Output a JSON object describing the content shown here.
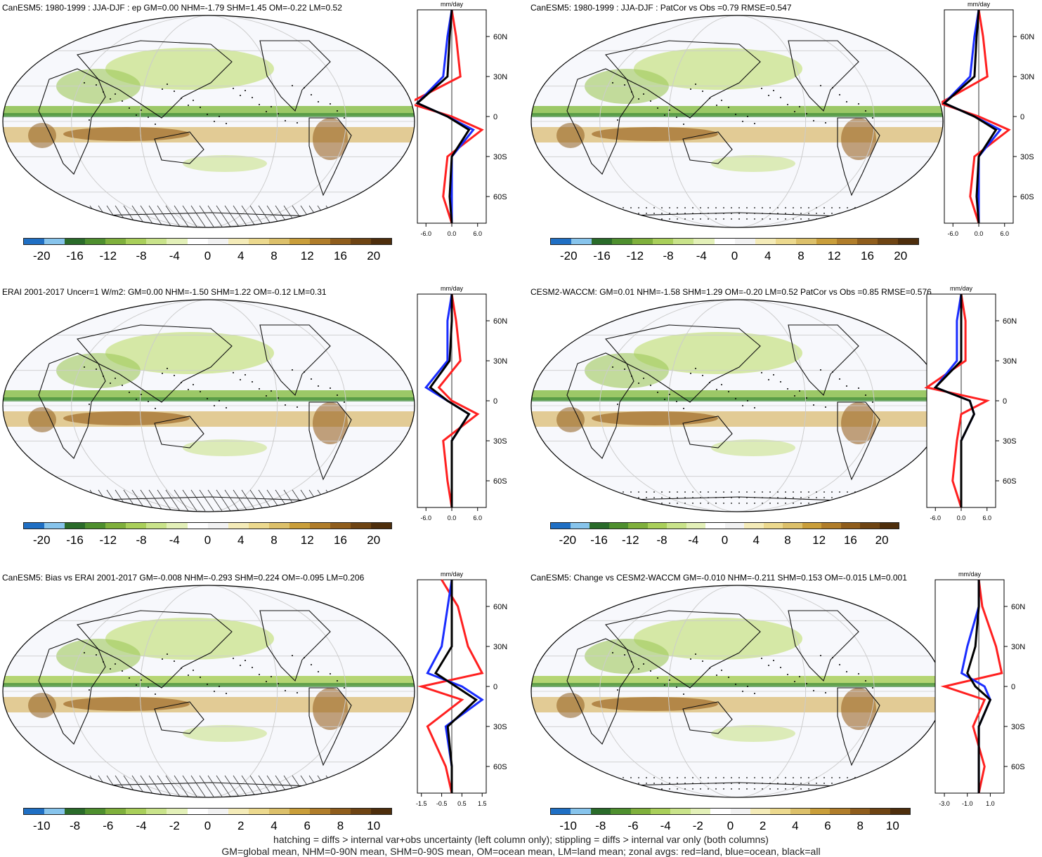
{
  "panels": [
    {
      "title": "CanESM5: 1980-1999 : JJA-DJF : ep GM=0.00 NHM=-1.79 SHM=1.45 OM=-0.22 LM=0.52",
      "colorbar_ticks": [
        "-20",
        "-16",
        "-12",
        "-8",
        "-4",
        "0",
        "4",
        "8",
        "12",
        "16",
        "20"
      ],
      "zonal_units": "mm/day",
      "zonal_xticks": [
        "-6.0",
        "0.0",
        "6.0"
      ],
      "overlay": "hatching"
    },
    {
      "title": "CanESM5: 1980-1999 : JJA-DJF : PatCor vs Obs =0.79 RMSE=0.547",
      "colorbar_ticks": [
        "-20",
        "-16",
        "-12",
        "-8",
        "-4",
        "0",
        "4",
        "8",
        "12",
        "16",
        "20"
      ],
      "zonal_units": "mm/day",
      "zonal_xticks": [
        "-6.0",
        "0.0",
        "6.0"
      ],
      "overlay": "stippling"
    },
    {
      "title": "ERAI 2001-2017 Uncer=1 W/m2: GM=0.00 NHM=-1.50 SHM=1.22 OM=-0.12 LM=0.31",
      "colorbar_ticks": [
        "-20",
        "-16",
        "-12",
        "-8",
        "-4",
        "0",
        "4",
        "8",
        "12",
        "16",
        "20"
      ],
      "zonal_units": "mm/day",
      "zonal_xticks": [
        "-6.0",
        "0.0",
        "6.0"
      ],
      "overlay": "hatching"
    },
    {
      "title": "CESM2-WACCM: GM=0.01 NHM=-1.58 SHM=1.29 OM=-0.20 LM=0.52 PatCor vs Obs =0.85 RMSE=0.576",
      "colorbar_ticks": [
        "-20",
        "-16",
        "-12",
        "-8",
        "-4",
        "0",
        "4",
        "8",
        "12",
        "16",
        "20"
      ],
      "zonal_units": "mm/day",
      "zonal_xticks": [
        "-6.0",
        "0.0",
        "6.0"
      ],
      "overlay": "stippling"
    },
    {
      "title": "CanESM5: Bias vs ERAI 2001-2017 GM=-0.008 NHM=-0.293 SHM=0.224 OM=-0.095 LM=0.206",
      "colorbar_ticks": [
        "-10",
        "-8",
        "-6",
        "-4",
        "-2",
        "0",
        "2",
        "4",
        "6",
        "8",
        "10"
      ],
      "zonal_units": "mm/day",
      "zonal_xticks": [
        "-1.5",
        "-0.5",
        "0.5",
        "1.5"
      ],
      "overlay": "hatching"
    },
    {
      "title": "CanESM5: Change vs CESM2-WACCM GM=-0.010 NHM=-0.211 SHM=0.153 OM=-0.015 LM=0.001",
      "colorbar_ticks": [
        "-10",
        "-8",
        "-6",
        "-4",
        "-2",
        "0",
        "2",
        "4",
        "6",
        "8",
        "10"
      ],
      "zonal_units": "mm/day",
      "zonal_xticks": [
        "-3.0",
        "-1.0",
        "1.0"
      ],
      "overlay": "stippling"
    }
  ],
  "zonal_lat_ticks": [
    "60N",
    "30N",
    "0",
    "30S",
    "60S"
  ],
  "colorbar_colors": [
    "#1f6fc4",
    "#87c4ec",
    "#2a6b2a",
    "#4e8f2e",
    "#7fb03c",
    "#a9cf5a",
    "#c9e38a",
    "#e3f0b8",
    "#ffffff",
    "#f2f2f2",
    "#f4ebb8",
    "#ecd98e",
    "#dcc06a",
    "#c99e3a",
    "#b07d2a",
    "#8f5d1c",
    "#6e4413",
    "#4e2e0c"
  ],
  "chart_data": [
    {
      "type": "line",
      "title": "CanESM5: 1980-1999 : JJA-DJF : ep GM=0.00 NHM=-1.79 SHM=1.45 OM=-0.22 LM=0.52",
      "xlabel": "mm/day",
      "lat": [
        80,
        60,
        30,
        10,
        0,
        -10,
        -30,
        -60,
        -80
      ],
      "series": [
        {
          "name": "land",
          "values": [
            0,
            1,
            2,
            -10,
            0,
            7,
            -1,
            -2,
            0
          ]
        },
        {
          "name": "ocean",
          "values": [
            0,
            -1,
            -2,
            -8,
            -1,
            5,
            0,
            0,
            0
          ]
        },
        {
          "name": "all",
          "values": [
            0,
            -0.5,
            -1,
            -8,
            -1,
            4,
            0,
            -0.5,
            0
          ]
        }
      ]
    },
    {
      "type": "line",
      "title": "CanESM5: 1980-1999 : JJA-DJF : PatCor vs Obs =0.79 RMSE=0.547",
      "xlabel": "mm/day",
      "lat": [
        80,
        60,
        30,
        10,
        0,
        -10,
        -30,
        -60,
        -80
      ],
      "series": [
        {
          "name": "land",
          "values": [
            0,
            1,
            2,
            -9,
            0,
            7,
            -1,
            -2,
            0
          ]
        },
        {
          "name": "ocean",
          "values": [
            0,
            -1,
            -2,
            -8,
            -1,
            5,
            0,
            0,
            0
          ]
        },
        {
          "name": "all",
          "values": [
            0,
            -0.5,
            -1,
            -8,
            -1,
            4,
            0,
            -0.5,
            0
          ]
        }
      ]
    },
    {
      "type": "line",
      "title": "ERAI 2001-2017 Uncer=1 W/m2: GM=0.00 NHM=-1.50 SHM=1.22 OM=-0.12 LM=0.31",
      "xlabel": "mm/day",
      "lat": [
        80,
        60,
        30,
        10,
        0,
        -10,
        -30,
        -60,
        -80
      ],
      "series": [
        {
          "name": "land",
          "values": [
            0,
            1,
            2,
            -3,
            0,
            6,
            -2,
            -1,
            0
          ]
        },
        {
          "name": "ocean",
          "values": [
            0,
            -1,
            -1,
            -6,
            -1,
            4,
            0,
            0,
            0
          ]
        },
        {
          "name": "all",
          "values": [
            0,
            0,
            -0.5,
            -5,
            -1,
            4,
            0,
            0,
            0
          ]
        }
      ]
    },
    {
      "type": "line",
      "title": "CESM2-WACCM: GM=0.01 NHM=-1.58 SHM=1.29 OM=-0.20 LM=0.52 PatCor vs Obs =0.85 RMSE=0.576",
      "xlabel": "mm/day",
      "lat": [
        80,
        60,
        30,
        10,
        0,
        -10,
        -30,
        -60,
        -80
      ],
      "series": [
        {
          "name": "land",
          "values": [
            0,
            1,
            1,
            -8,
            6,
            0,
            -1,
            -2,
            0
          ]
        },
        {
          "name": "ocean",
          "values": [
            0,
            -1,
            -1,
            -6,
            2,
            3,
            0,
            0,
            0
          ]
        },
        {
          "name": "all",
          "values": [
            0,
            0,
            0,
            -6,
            2,
            3,
            0,
            0,
            0
          ]
        }
      ]
    },
    {
      "type": "line",
      "title": "CanESM5: Bias vs ERAI 2001-2017 GM=-0.008 NHM=-0.293 SHM=0.224 OM=-0.095 LM=0.206",
      "xlabel": "mm/day",
      "lat": [
        80,
        60,
        30,
        10,
        0,
        -10,
        -30,
        -60,
        -80
      ],
      "series": [
        {
          "name": "land",
          "values": [
            -0.5,
            0.3,
            0.8,
            1.5,
            -1.5,
            0.5,
            -1.2,
            -0.3,
            0
          ]
        },
        {
          "name": "ocean",
          "values": [
            0,
            -0.2,
            -0.5,
            -1.2,
            0.5,
            1.5,
            -0.3,
            0,
            0
          ]
        },
        {
          "name": "all",
          "values": [
            0,
            0,
            0,
            -0.8,
            0.2,
            1.2,
            -0.2,
            0,
            0
          ]
        }
      ]
    },
    {
      "type": "line",
      "title": "CanESM5: Change vs CESM2-WACCM GM=-0.010 NHM=-0.211 SHM=0.153 OM=-0.015 LM=0.001",
      "xlabel": "mm/day",
      "lat": [
        80,
        60,
        30,
        10,
        0,
        -10,
        -30,
        -60,
        -80
      ],
      "series": [
        {
          "name": "land",
          "values": [
            0,
            0.3,
            1.5,
            2,
            -3,
            0.5,
            -0.5,
            0.5,
            0
          ]
        },
        {
          "name": "ocean",
          "values": [
            0,
            0,
            -1,
            -1.5,
            0.5,
            1,
            0,
            0,
            0
          ]
        },
        {
          "name": "all",
          "values": [
            0,
            0,
            -0.3,
            -1,
            -0.3,
            1,
            0,
            0,
            0
          ]
        }
      ]
    }
  ],
  "footer": {
    "line1": "hatching = diffs > internal var+obs uncertainty (left column only); stippling = diffs > internal var only (both columns)",
    "line2": "GM=global mean, NHM=0-90N mean, SHM=0-90S mean, OM=ocean mean, LM=land mean; zonal avgs: red=land, blue=ocean, black=all"
  }
}
